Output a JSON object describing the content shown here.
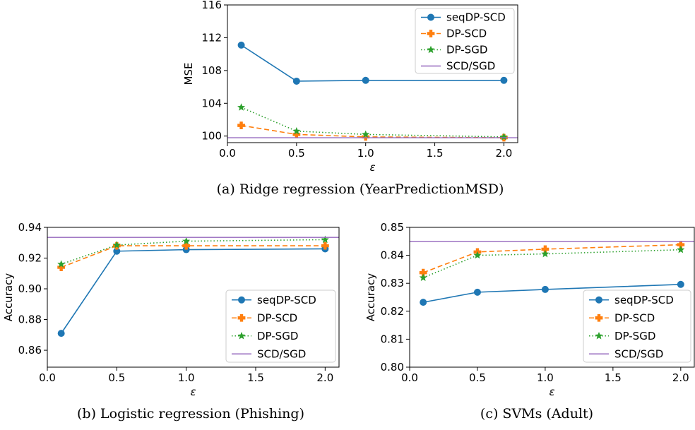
{
  "series_styles": [
    {
      "name": "seqDP-SCD",
      "color": "#1f77b4",
      "dash": "",
      "marker": "circle"
    },
    {
      "name": "DP-SCD",
      "color": "#ff7f0e",
      "dash": "7,4",
      "marker": "plus"
    },
    {
      "name": "DP-SGD",
      "color": "#2ca02c",
      "dash": "1.5,3",
      "marker": "star"
    },
    {
      "name": "SCD/SGD",
      "color": "#9467bd",
      "dash": "",
      "marker": "none"
    }
  ],
  "chart_data": [
    {
      "id": "a",
      "type": "line",
      "caption": "(a) Ridge regression (YearPredictionMSD)",
      "xlabel": "ε",
      "ylabel": "MSE",
      "xlim": [
        0.0,
        2.1
      ],
      "ylim": [
        99.2,
        116
      ],
      "xticks": [
        "0.0",
        "0.5",
        "1.0",
        "1.5",
        "2.0"
      ],
      "xtick_values": [
        0.0,
        0.5,
        1.0,
        1.5,
        2.0
      ],
      "yticks": [
        "100",
        "104",
        "108",
        "112",
        "116"
      ],
      "ytick_values": [
        100,
        104,
        108,
        112,
        116
      ],
      "legend_position": "top-right",
      "x": [
        0.1,
        0.5,
        1.0,
        2.0
      ],
      "series": [
        {
          "name": "seqDP-SCD",
          "values": [
            111.1,
            106.7,
            106.8,
            106.8
          ]
        },
        {
          "name": "DP-SCD",
          "values": [
            101.3,
            100.2,
            99.9,
            99.8
          ]
        },
        {
          "name": "DP-SGD",
          "values": [
            103.5,
            100.6,
            100.2,
            99.9
          ]
        },
        {
          "name": "SCD/SGD",
          "values": [
            99.8,
            99.8,
            99.8,
            99.8
          ]
        }
      ]
    },
    {
      "id": "b",
      "type": "line",
      "caption": "(b) Logistic regression (Phishing)",
      "xlabel": "ε",
      "ylabel": "Accuracy",
      "xlim": [
        0.0,
        2.1
      ],
      "ylim": [
        0.849,
        0.94
      ],
      "xticks": [
        "0.0",
        "0.5",
        "1.0",
        "1.5",
        "2.0"
      ],
      "xtick_values": [
        0.0,
        0.5,
        1.0,
        1.5,
        2.0
      ],
      "yticks": [
        "0.86",
        "0.88",
        "0.90",
        "0.92",
        "0.94"
      ],
      "ytick_values": [
        0.86,
        0.88,
        0.9,
        0.92,
        0.94
      ],
      "legend_position": "lower-right",
      "x": [
        0.1,
        0.5,
        1.0,
        2.0
      ],
      "series": [
        {
          "name": "seqDP-SCD",
          "values": [
            0.871,
            0.9245,
            0.9255,
            0.926
          ]
        },
        {
          "name": "DP-SCD",
          "values": [
            0.914,
            0.928,
            0.928,
            0.928
          ]
        },
        {
          "name": "DP-SGD",
          "values": [
            0.916,
            0.9285,
            0.931,
            0.932
          ]
        },
        {
          "name": "SCD/SGD",
          "values": [
            0.9335,
            0.9335,
            0.9335,
            0.9335
          ]
        }
      ]
    },
    {
      "id": "c",
      "type": "line",
      "caption": "(c) SVMs (Adult)",
      "xlabel": "ε",
      "ylabel": "Accuracy",
      "xlim": [
        0.0,
        2.1
      ],
      "ylim": [
        0.8,
        0.85
      ],
      "xticks": [
        "0.0",
        "0.5",
        "1.0",
        "1.5",
        "2.0"
      ],
      "xtick_values": [
        0.0,
        0.5,
        1.0,
        1.5,
        2.0
      ],
      "yticks": [
        "0.80",
        "0.81",
        "0.82",
        "0.83",
        "0.84",
        "0.85"
      ],
      "ytick_values": [
        0.8,
        0.81,
        0.82,
        0.83,
        0.84,
        0.85
      ],
      "legend_position": "lower-right",
      "x": [
        0.1,
        0.5,
        1.0,
        2.0
      ],
      "series": [
        {
          "name": "seqDP-SCD",
          "values": [
            0.8232,
            0.8268,
            0.8278,
            0.8296
          ]
        },
        {
          "name": "DP-SCD",
          "values": [
            0.8338,
            0.8412,
            0.8422,
            0.8438
          ]
        },
        {
          "name": "DP-SGD",
          "values": [
            0.832,
            0.84,
            0.8405,
            0.842
          ]
        },
        {
          "name": "SCD/SGD",
          "values": [
            0.8449,
            0.8449,
            0.8449,
            0.8449
          ]
        }
      ]
    }
  ]
}
